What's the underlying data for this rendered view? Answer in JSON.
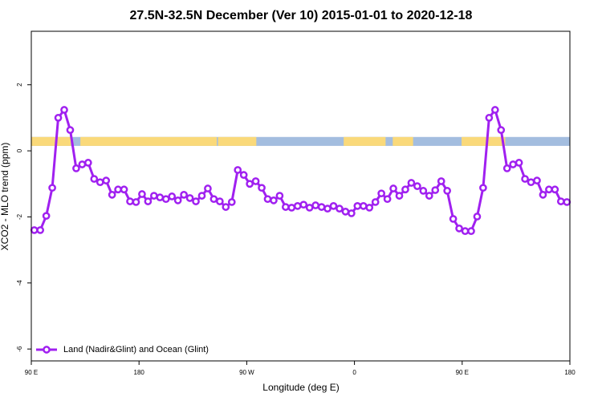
{
  "chart_data": {
    "type": "line",
    "title": "27.5N-32.5N December (Ver 10)   2015-01-01 to 2020-12-18",
    "xlabel": "Longitude (deg E)",
    "ylabel": "XCO2 - MLO trend (ppm)",
    "xlim": [
      90,
      540
    ],
    "ylim": [
      -6.36,
      3.62
    ],
    "xticks": [
      {
        "value": 90,
        "label": "90 E"
      },
      180,
      {
        "value": 270,
        "label": "90 W"
      },
      {
        "value": 360,
        "label": "0"
      },
      {
        "value": 450,
        "label": "90 E"
      },
      {
        "value": 540,
        "label": "180"
      }
    ],
    "yticks": [
      2,
      0,
      -2,
      -4,
      -6
    ],
    "legend": "bottom-left",
    "strip": {
      "ylim": [
        0.15,
        0.42
      ],
      "color": "#a3bddf",
      "segments": [
        {
          "from": 90,
          "to": 123,
          "color": "#fad97a"
        },
        {
          "from": 131,
          "to": 245,
          "color": "#fad97a"
        },
        {
          "from": 246,
          "to": 278,
          "color": "#fad97a"
        },
        {
          "from": 351,
          "to": 386,
          "color": "#fad97a"
        },
        {
          "from": 392,
          "to": 409,
          "color": "#fad97a"
        },
        {
          "from": 449.5,
          "to": 486,
          "color": "#fad97a"
        }
      ]
    },
    "series": [
      {
        "name": "Land (Nadir&Glint) and Ocean (Glint)",
        "color": "#a020f0",
        "x": [
          92.5,
          97.5,
          102.5,
          107.5,
          112.5,
          117.5,
          122.5,
          127.5,
          132.5,
          137.5,
          142.5,
          147.5,
          152.5,
          157.5,
          162.5,
          167.5,
          172.5,
          177.5,
          182.5,
          187.5,
          192.5,
          197.5,
          202.5,
          207.5,
          212.5,
          217.5,
          222.5,
          227.5,
          232.5,
          237.5,
          242.5,
          247.5,
          252.5,
          257.5,
          262.5,
          267.5,
          272.5,
          277.5,
          282.5,
          287.5,
          292.5,
          297.5,
          302.5,
          307.5,
          312.5,
          317.5,
          322.5,
          327.5,
          332.5,
          337.5,
          342.5,
          347.5,
          352.5,
          357.5,
          362.5,
          367.5,
          372.5,
          377.5,
          382.5,
          387.5,
          392.5,
          397.5,
          402.5,
          407.5,
          412.5,
          417.5,
          422.5,
          427.5,
          432.5,
          437.5,
          442.5,
          447.5,
          452.5,
          457.5,
          462.5,
          467.5,
          472.5,
          477.5,
          482.5,
          487.5,
          492.5,
          497.5,
          502.5,
          507.5,
          512.5,
          517.5,
          522.5,
          527.5,
          532.5,
          537.5
        ],
        "values": [
          -2.4,
          -2.4,
          -1.97,
          -1.12,
          1.0,
          1.24,
          0.63,
          -0.53,
          -0.41,
          -0.36,
          -0.85,
          -0.95,
          -0.9,
          -1.33,
          -1.17,
          -1.17,
          -1.53,
          -1.55,
          -1.31,
          -1.53,
          -1.36,
          -1.41,
          -1.46,
          -1.38,
          -1.5,
          -1.33,
          -1.43,
          -1.53,
          -1.36,
          -1.14,
          -1.46,
          -1.53,
          -1.7,
          -1.55,
          -0.58,
          -0.73,
          -1.0,
          -0.92,
          -1.12,
          -1.46,
          -1.5,
          -1.36,
          -1.7,
          -1.72,
          -1.67,
          -1.63,
          -1.72,
          -1.65,
          -1.7,
          -1.75,
          -1.67,
          -1.75,
          -1.84,
          -1.89,
          -1.67,
          -1.67,
          -1.72,
          -1.55,
          -1.29,
          -1.46,
          -1.14,
          -1.36,
          -1.17,
          -0.97,
          -1.07,
          -1.21,
          -1.36,
          -1.19,
          -0.92,
          -1.21,
          -2.06,
          -2.35,
          -2.43,
          -2.43,
          -1.99,
          -1.12,
          1.0,
          1.24,
          0.63,
          -0.53,
          -0.41,
          -0.36,
          -0.85,
          -0.95,
          -0.9,
          -1.33,
          -1.17,
          -1.17,
          -1.53,
          -1.55
        ]
      }
    ]
  }
}
